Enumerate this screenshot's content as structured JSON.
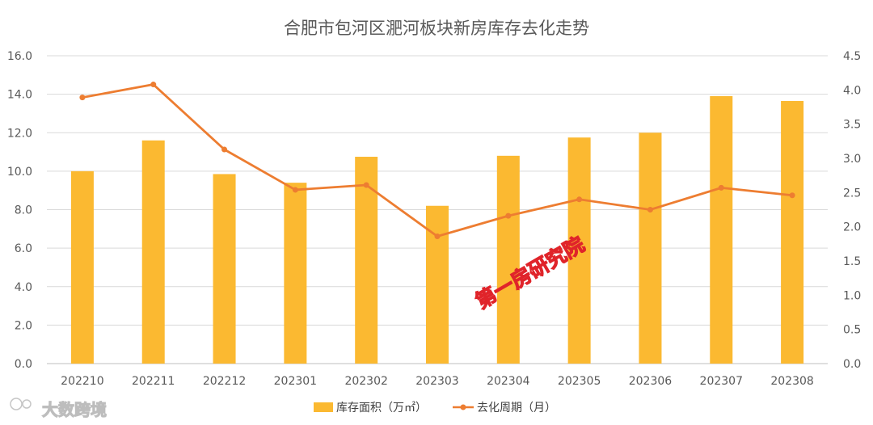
{
  "chart_data": {
    "type": "bar",
    "title": "合肥市包河区淝河板块新房库存去化走势",
    "categories": [
      "202210",
      "202211",
      "202212",
      "202301",
      "202302",
      "202303",
      "202304",
      "202305",
      "202306",
      "202307",
      "202308"
    ],
    "series": [
      {
        "name": "库存面积（万㎡）",
        "type": "bar",
        "axis": "left",
        "color": "#FBB931",
        "values": [
          10.0,
          11.6,
          9.85,
          9.4,
          10.75,
          8.2,
          10.8,
          11.75,
          12.0,
          13.9,
          13.65
        ]
      },
      {
        "name": "去化周期（月）",
        "type": "line",
        "axis": "right",
        "color": "#ED7D31",
        "values": [
          3.89,
          4.08,
          3.13,
          2.54,
          2.61,
          1.86,
          2.16,
          2.4,
          2.25,
          2.57,
          2.46
        ]
      }
    ],
    "y_left": {
      "ylim": [
        0,
        16
      ],
      "ticks": [
        "0.0",
        "2.0",
        "4.0",
        "6.0",
        "8.0",
        "10.0",
        "12.0",
        "14.0",
        "16.0"
      ]
    },
    "y_right": {
      "ylim": [
        0,
        4.5
      ],
      "ticks": [
        "0.0",
        "0.5",
        "1.0",
        "1.5",
        "2.0",
        "2.5",
        "3.0",
        "3.5",
        "4.0",
        "4.5"
      ]
    },
    "grid": true,
    "legend_position": "bottom"
  },
  "watermarks": {
    "logo_text": "大数跨境",
    "stamp_text": "第一房研究院"
  }
}
